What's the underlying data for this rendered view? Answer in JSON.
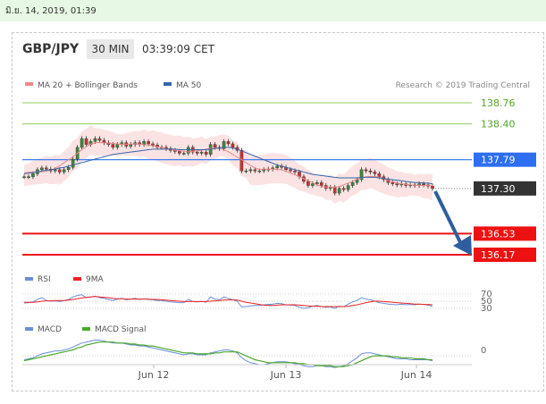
{
  "datetime": "มิ.ย. 14, 2019, 01:39",
  "header": {
    "pair": "GBP/JPY",
    "timeframe": "30 MIN",
    "time": "03:39:09 CET"
  },
  "legend": {
    "ma20": "MA 20 + Bollinger Bands",
    "ma20_color": "#ee8888",
    "ma50": "MA 50",
    "ma50_color": "#3366aa",
    "credit": "Research © 2019 Trading Central"
  },
  "levels": [
    {
      "value": 138.76,
      "label": "138.76",
      "kind": "resistance",
      "color": "#8ccf5a"
    },
    {
      "value": 138.4,
      "label": "138.40",
      "kind": "resistance",
      "color": "#8ccf5a"
    },
    {
      "value": 137.79,
      "label": "137.79",
      "kind": "pivot",
      "color": "#2d6ff0"
    },
    {
      "value": 137.3,
      "label": "137.30",
      "kind": "last",
      "color": "#333333"
    },
    {
      "value": 136.53,
      "label": "136.53",
      "kind": "support",
      "color": "#ee1111"
    },
    {
      "value": 136.17,
      "label": "136.17",
      "kind": "support",
      "color": "#ee1111"
    }
  ],
  "rsi_legend": {
    "rsi": "RSI",
    "ma": "9MA"
  },
  "rsi_ticks": [
    "70",
    "50",
    "30"
  ],
  "macd_legend": {
    "macd": "MACD",
    "signal": "MACD Signal"
  },
  "macd_ticks": [
    "0"
  ],
  "x_ticks": [
    "Jun 12",
    "Jun 13",
    "Jun 14"
  ],
  "chart_data": {
    "type": "line",
    "title": "GBP/JPY",
    "x_labels": [
      "Jun 12",
      "Jun 13",
      "Jun 14"
    ],
    "y_range": [
      136.0,
      139.0
    ],
    "price": [
      137.5,
      137.5,
      137.55,
      137.62,
      137.65,
      137.63,
      137.6,
      137.62,
      137.58,
      137.62,
      137.66,
      137.8,
      138.0,
      138.15,
      138.05,
      138.1,
      138.15,
      138.12,
      138.08,
      138.05,
      138.0,
      138.05,
      138.08,
      138.02,
      138.05,
      138.08,
      138.05,
      138.1,
      138.06,
      138.04,
      138.0,
      138.0,
      137.98,
      137.95,
      137.93,
      137.9,
      137.9,
      138.0,
      137.92,
      137.9,
      137.92,
      137.88,
      138.05,
      138.0,
      137.98,
      138.1,
      138.06,
      138.0,
      137.95,
      137.6,
      137.6,
      137.62,
      137.6,
      137.6,
      137.62,
      137.63,
      137.65,
      137.68,
      137.66,
      137.62,
      137.6,
      137.58,
      137.5,
      137.42,
      137.35,
      137.38,
      137.4,
      137.35,
      137.3,
      137.32,
      137.22,
      137.3,
      137.28,
      137.35,
      137.4,
      137.45,
      137.62,
      137.6,
      137.58,
      137.55,
      137.5,
      137.45,
      137.4,
      137.38,
      137.36,
      137.38,
      137.35,
      137.36,
      137.35,
      137.38,
      137.36,
      137.34,
      137.3
    ],
    "ma50": [
      137.55,
      137.56,
      137.57,
      137.58,
      137.6,
      137.61,
      137.62,
      137.63,
      137.65,
      137.66,
      137.68,
      137.7,
      137.72,
      137.74,
      137.76,
      137.78,
      137.8,
      137.82,
      137.84,
      137.86,
      137.88,
      137.89,
      137.9,
      137.91,
      137.92,
      137.93,
      137.94,
      137.95,
      137.96,
      137.97,
      137.97,
      137.97,
      137.97,
      137.97,
      137.97,
      137.96,
      137.96,
      137.96,
      137.96,
      137.96,
      137.96,
      137.96,
      137.97,
      137.98,
      137.99,
      138.0,
      138.0,
      137.99,
      137.97,
      137.94,
      137.91,
      137.88,
      137.85,
      137.82,
      137.79,
      137.76,
      137.73,
      137.7,
      137.68,
      137.66,
      137.64,
      137.62,
      137.6,
      137.58,
      137.56,
      137.54,
      137.53,
      137.52,
      137.51,
      137.5,
      137.49,
      137.48,
      137.48,
      137.48,
      137.48,
      137.48,
      137.49,
      137.49,
      137.49,
      137.49,
      137.48,
      137.47,
      137.46,
      137.45,
      137.44,
      137.43,
      137.42,
      137.41,
      137.4,
      137.4,
      137.39,
      137.39,
      137.38
    ],
    "rsi": [
      45,
      46,
      48,
      55,
      60,
      52,
      50,
      51,
      49,
      52,
      55,
      62,
      66,
      68,
      60,
      62,
      64,
      60,
      58,
      55,
      52,
      56,
      58,
      54,
      56,
      58,
      55,
      57,
      55,
      54,
      52,
      52,
      50,
      48,
      47,
      46,
      46,
      55,
      49,
      48,
      50,
      47,
      62,
      56,
      54,
      62,
      58,
      54,
      50,
      34,
      35,
      37,
      38,
      38,
      40,
      41,
      42,
      44,
      43,
      40,
      39,
      38,
      33,
      30,
      32,
      36,
      38,
      35,
      33,
      34,
      30,
      36,
      35,
      42,
      48,
      52,
      60,
      56,
      54,
      50,
      46,
      44,
      42,
      41,
      40,
      42,
      40,
      41,
      40,
      42,
      41,
      39,
      36
    ],
    "rsi_ma": [
      47,
      47,
      47,
      48,
      50,
      51,
      51,
      52,
      52,
      52,
      53,
      55,
      57,
      59,
      61,
      62,
      63,
      62,
      61,
      60,
      58,
      57,
      57,
      56,
      56,
      56,
      56,
      56,
      56,
      55,
      55,
      54,
      53,
      52,
      51,
      50,
      49,
      49,
      49,
      49,
      49,
      49,
      50,
      51,
      52,
      53,
      54,
      54,
      53,
      50,
      47,
      45,
      43,
      41,
      39,
      38,
      38,
      39,
      40,
      40,
      40,
      40,
      39,
      38,
      37,
      36,
      36,
      35,
      35,
      35,
      35,
      35,
      35,
      36,
      38,
      40,
      43,
      46,
      48,
      50,
      50,
      49,
      48,
      47,
      46,
      45,
      44,
      43,
      42,
      42,
      41,
      41,
      40
    ],
    "macd": [
      -0.05,
      -0.04,
      -0.03,
      -0.01,
      0.01,
      0.02,
      0.03,
      0.04,
      0.04,
      0.05,
      0.06,
      0.08,
      0.1,
      0.12,
      0.13,
      0.14,
      0.15,
      0.15,
      0.14,
      0.13,
      0.12,
      0.12,
      0.12,
      0.11,
      0.1,
      0.1,
      0.09,
      0.09,
      0.08,
      0.07,
      0.06,
      0.05,
      0.04,
      0.03,
      0.02,
      0.01,
      0.0,
      0.01,
      0.01,
      0.0,
      0.0,
      0.0,
      0.02,
      0.03,
      0.04,
      0.05,
      0.05,
      0.04,
      0.02,
      -0.03,
      -0.06,
      -0.08,
      -0.09,
      -0.1,
      -0.1,
      -0.09,
      -0.08,
      -0.07,
      -0.07,
      -0.07,
      -0.08,
      -0.09,
      -0.1,
      -0.11,
      -0.12,
      -0.12,
      -0.11,
      -0.11,
      -0.12,
      -0.12,
      -0.13,
      -0.12,
      -0.11,
      -0.09,
      -0.06,
      -0.03,
      0.01,
      0.02,
      0.02,
      0.01,
      0.0,
      -0.01,
      -0.02,
      -0.03,
      -0.04,
      -0.04,
      -0.04,
      -0.05,
      -0.05,
      -0.05,
      -0.05,
      -0.05,
      -0.06
    ],
    "macd_signal": [
      -0.06,
      -0.05,
      -0.04,
      -0.03,
      -0.02,
      -0.01,
      0.0,
      0.01,
      0.02,
      0.03,
      0.04,
      0.05,
      0.07,
      0.08,
      0.1,
      0.11,
      0.12,
      0.13,
      0.13,
      0.13,
      0.13,
      0.12,
      0.12,
      0.12,
      0.11,
      0.11,
      0.1,
      0.1,
      0.09,
      0.09,
      0.08,
      0.07,
      0.06,
      0.05,
      0.04,
      0.03,
      0.02,
      0.02,
      0.02,
      0.01,
      0.01,
      0.01,
      0.01,
      0.02,
      0.02,
      0.03,
      0.03,
      0.03,
      0.03,
      0.01,
      -0.01,
      -0.03,
      -0.05,
      -0.06,
      -0.07,
      -0.08,
      -0.08,
      -0.08,
      -0.08,
      -0.08,
      -0.08,
      -0.08,
      -0.09,
      -0.09,
      -0.1,
      -0.1,
      -0.11,
      -0.11,
      -0.11,
      -0.11,
      -0.12,
      -0.12,
      -0.12,
      -0.11,
      -0.1,
      -0.08,
      -0.06,
      -0.04,
      -0.02,
      -0.01,
      -0.01,
      -0.01,
      -0.01,
      -0.02,
      -0.02,
      -0.03,
      -0.03,
      -0.03,
      -0.04,
      -0.04,
      -0.04,
      -0.05,
      -0.05
    ]
  }
}
